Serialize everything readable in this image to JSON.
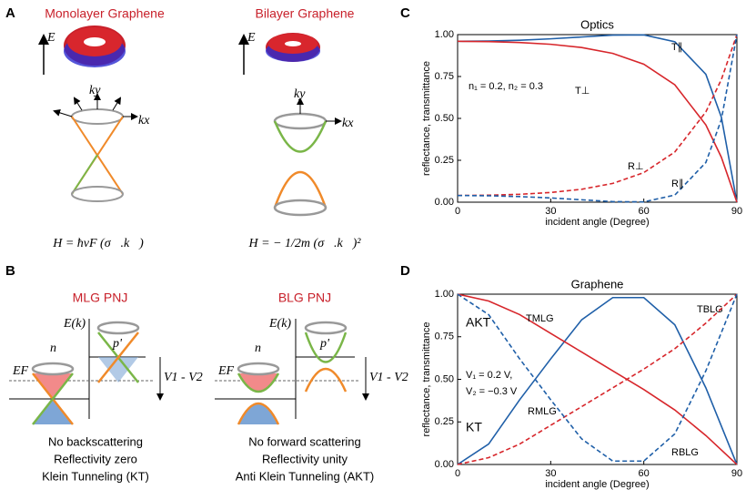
{
  "panels": {
    "A": {
      "letter": "A",
      "mlg_title": "Monolayer Graphene",
      "blg_title": "Bilayer Graphene",
      "energy": "E",
      "ky": "ky",
      "kx": "kx",
      "mlg_eq": "H = ħvF (σ⃗.k⃗)",
      "blg_eq": "H = − 1/2m (σ⃗.k⃗)²"
    },
    "B": {
      "letter": "B",
      "mlg_title": "MLG PNJ",
      "blg_title": "BLG PNJ",
      "ek": "E(k)",
      "n": "n",
      "p": "p'",
      "ef": "EF",
      "v": "V1 - V2",
      "mlg_caption": [
        "No backscattering",
        "Reflectivity zero",
        "Klein Tunneling (KT)"
      ],
      "blg_caption": [
        "No forward scattering",
        "Reflectivity unity",
        "Anti Klein Tunneling (AKT)"
      ]
    },
    "C": {
      "letter": "C"
    },
    "D": {
      "letter": "D"
    }
  },
  "chart_data": [
    {
      "type": "line",
      "title": "Optics",
      "xlabel": "incident angle (Degree)",
      "ylabel": "reflectance, transmittance",
      "annotations": [
        "n₁ = 0.2,  n₂ = 0.3"
      ],
      "x": [
        0,
        10,
        20,
        30,
        40,
        50,
        60,
        70,
        80,
        85,
        90
      ],
      "xlim": [
        0,
        90
      ],
      "xticks": [
        0,
        30,
        60,
        90
      ],
      "ylim": [
        0,
        1
      ],
      "yticks": [
        {
          "value": 0,
          "label": "0.00"
        },
        {
          "value": 0.25,
          "label": "0.25"
        },
        {
          "value": 0.5,
          "label": "0.50"
        },
        {
          "value": 0.75,
          "label": "0.75"
        },
        {
          "value": 1,
          "label": "1.00"
        }
      ],
      "series": [
        {
          "name": "T∥",
          "color": "#1f5fa8",
          "dashed": false,
          "values": [
            0.96,
            0.9616,
            0.9666,
            0.9748,
            0.9857,
            0.9967,
            0.9982,
            0.9575,
            0.7631,
            0.5069,
            0
          ]
        },
        {
          "name": "T⊥",
          "color": "#d7262b",
          "dashed": false,
          "values": [
            0.96,
            0.9583,
            0.9529,
            0.9422,
            0.9228,
            0.8879,
            0.8234,
            0.7004,
            0.4613,
            0.2678,
            0
          ]
        },
        {
          "name": "R⊥",
          "color": "#d7262b",
          "dashed": true,
          "values": [
            0.04,
            0.0417,
            0.0471,
            0.0578,
            0.0772,
            0.1121,
            0.1766,
            0.2996,
            0.5387,
            0.7322,
            1
          ]
        },
        {
          "name": "R∥",
          "color": "#1f5fa8",
          "dashed": true,
          "values": [
            0.04,
            0.0384,
            0.0334,
            0.0252,
            0.0143,
            0.0033,
            0.0018,
            0.0425,
            0.2369,
            0.4931,
            1
          ]
        }
      ]
    },
    {
      "type": "line",
      "title": "Graphene",
      "xlabel": "incident angle (Degree)",
      "ylabel": "reflectance, transmittance",
      "annotations": [
        "V₁ = 0.2 V,",
        "V₂ = −0.3 V",
        "AKT",
        "KT"
      ],
      "x": [
        0,
        10,
        20,
        30,
        40,
        50,
        60,
        70,
        80,
        90
      ],
      "xlim": [
        0,
        90
      ],
      "xticks": [
        0,
        30,
        60,
        90
      ],
      "ylim": [
        0,
        1
      ],
      "yticks": [
        {
          "value": 0,
          "label": "0.00"
        },
        {
          "value": 0.25,
          "label": "0.25"
        },
        {
          "value": 0.5,
          "label": "0.50"
        },
        {
          "value": 0.75,
          "label": "0.75"
        },
        {
          "value": 1,
          "label": "1.00"
        }
      ],
      "series": [
        {
          "name": "TBLG",
          "color": "#1f5fa8",
          "dashed": false,
          "values": [
            0,
            0.12,
            0.38,
            0.62,
            0.85,
            0.98,
            0.98,
            0.82,
            0.45,
            0
          ]
        },
        {
          "name": "TMLG",
          "color": "#d7262b",
          "dashed": false,
          "values": [
            1,
            0.96,
            0.88,
            0.77,
            0.66,
            0.55,
            0.44,
            0.32,
            0.17,
            0
          ]
        },
        {
          "name": "RMLG",
          "color": "#d7262b",
          "dashed": true,
          "values": [
            0,
            0.04,
            0.12,
            0.23,
            0.34,
            0.45,
            0.56,
            0.68,
            0.83,
            1
          ]
        },
        {
          "name": "RBLG",
          "color": "#1f5fa8",
          "dashed": true,
          "values": [
            1,
            0.88,
            0.62,
            0.38,
            0.15,
            0.02,
            0.02,
            0.18,
            0.55,
            1
          ]
        }
      ]
    }
  ]
}
